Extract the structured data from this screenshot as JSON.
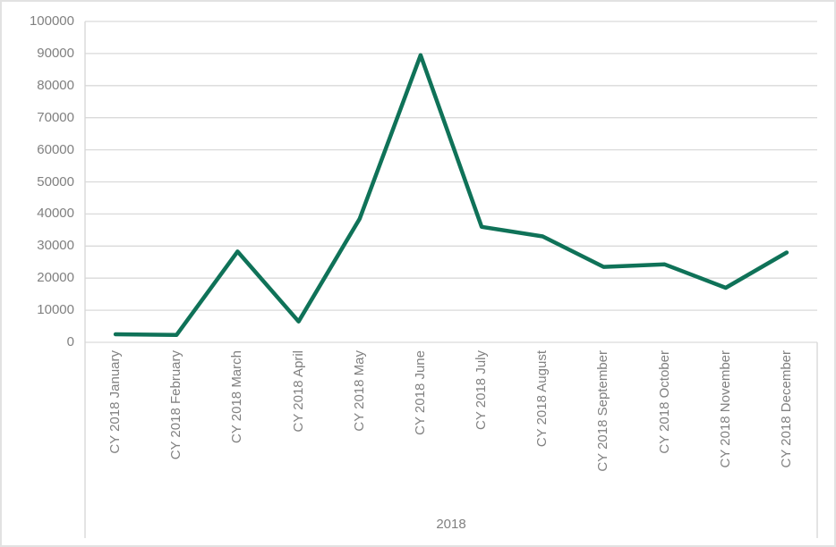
{
  "chart_data": {
    "type": "line",
    "title": "",
    "legend": "none",
    "grid": "horizontal",
    "categories": [
      "CY 2018 January",
      "CY 2018 February",
      "CY 2018 March",
      "CY 2018 April",
      "CY 2018 May",
      "CY 2018 June",
      "CY 2018 July",
      "CY 2018 August",
      "CY 2018 September",
      "CY 2018 October",
      "CY 2018 November",
      "CY 2018 December"
    ],
    "values": [
      2500,
      2300,
      28300,
      6500,
      38500,
      89500,
      36000,
      33000,
      23500,
      24300,
      17000,
      28000
    ],
    "xlabel_group": "2018",
    "ylim": [
      0,
      100000
    ],
    "y_tick_step": 10000,
    "y_ticks": [
      {
        "value": 0,
        "label": "0"
      },
      {
        "value": 10000,
        "label": "10000"
      },
      {
        "value": 20000,
        "label": "20000"
      },
      {
        "value": 30000,
        "label": "30000"
      },
      {
        "value": 40000,
        "label": "40000"
      },
      {
        "value": 50000,
        "label": "50000"
      },
      {
        "value": 60000,
        "label": "60000"
      },
      {
        "value": 70000,
        "label": "70000"
      },
      {
        "value": 80000,
        "label": "80000"
      },
      {
        "value": 90000,
        "label": "90000"
      },
      {
        "value": 100000,
        "label": "100000"
      }
    ],
    "colors": {
      "line": "#0f7258",
      "gridline": "#dadada",
      "axis_frame": "#d6d6d6",
      "tick_label": "#808080",
      "background": "#ffffff",
      "outer_border": "#e2e2e2"
    }
  }
}
